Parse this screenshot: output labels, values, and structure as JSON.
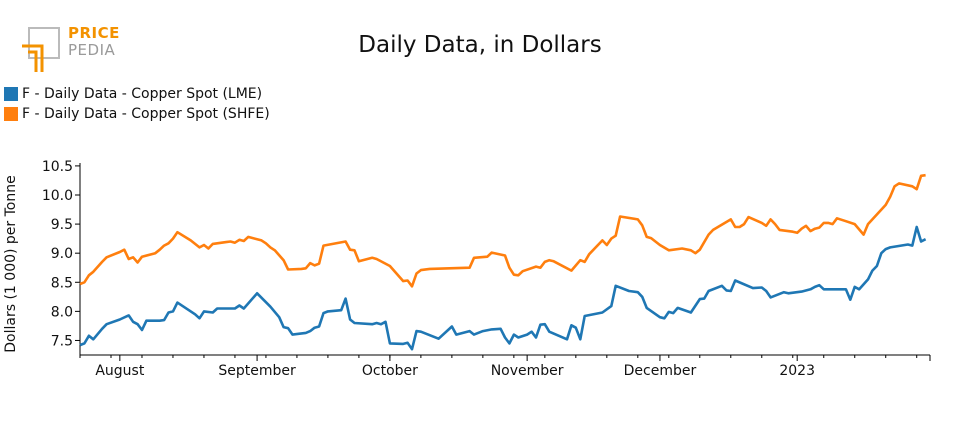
{
  "logo": {
    "line1": "PRICE",
    "line2": "PEDIA",
    "brand_color": "#f39200"
  },
  "chart_data": {
    "type": "line",
    "title": "Daily Data, in Dollars",
    "ylabel": "Dollars (1 000) per Tonne",
    "xlabel": "",
    "ylim": [
      7.25,
      10.55
    ],
    "yticks": [
      7.5,
      8.0,
      8.5,
      9.0,
      9.5,
      10.0,
      10.5
    ],
    "ytick_labels": [
      "7.5",
      "8.0",
      "8.5",
      "9.0",
      "9.5",
      "10.0",
      "10.5"
    ],
    "xlim": [
      "2022-07-23",
      "2023-01-31"
    ],
    "xticks": [
      "2022-08-01",
      "2022-09-01",
      "2022-10-01",
      "2022-11-01",
      "2022-12-01",
      "2023-01-01"
    ],
    "xtick_labels": [
      "August",
      "September",
      "October",
      "November",
      "December",
      "2023"
    ],
    "legend_position": "top-left",
    "series": [
      {
        "name": "F - Daily Data - Copper Spot (LME)",
        "color": "#1f77b4",
        "points": [
          [
            "2022-07-23",
            7.42
          ],
          [
            "2022-07-24",
            7.45
          ],
          [
            "2022-07-25",
            7.58
          ],
          [
            "2022-07-26",
            7.52
          ],
          [
            "2022-07-28",
            7.7
          ],
          [
            "2022-07-29",
            7.78
          ],
          [
            "2022-08-01",
            7.86
          ],
          [
            "2022-08-03",
            7.93
          ],
          [
            "2022-08-04",
            7.82
          ],
          [
            "2022-08-05",
            7.78
          ],
          [
            "2022-08-06",
            7.68
          ],
          [
            "2022-08-07",
            7.84
          ],
          [
            "2022-08-10",
            7.84
          ],
          [
            "2022-08-11",
            7.85
          ],
          [
            "2022-08-12",
            7.98
          ],
          [
            "2022-08-13",
            8.0
          ],
          [
            "2022-08-14",
            8.15
          ],
          [
            "2022-08-18",
            7.95
          ],
          [
            "2022-08-19",
            7.88
          ],
          [
            "2022-08-20",
            8.0
          ],
          [
            "2022-08-22",
            7.98
          ],
          [
            "2022-08-23",
            8.05
          ],
          [
            "2022-08-24",
            8.05
          ],
          [
            "2022-08-27",
            8.05
          ],
          [
            "2022-08-28",
            8.1
          ],
          [
            "2022-08-29",
            8.05
          ],
          [
            "2022-09-01",
            8.31
          ],
          [
            "2022-09-04",
            8.08
          ],
          [
            "2022-09-06",
            7.9
          ],
          [
            "2022-09-07",
            7.73
          ],
          [
            "2022-09-08",
            7.71
          ],
          [
            "2022-09-09",
            7.6
          ],
          [
            "2022-09-12",
            7.63
          ],
          [
            "2022-09-13",
            7.66
          ],
          [
            "2022-09-14",
            7.72
          ],
          [
            "2022-09-15",
            7.74
          ],
          [
            "2022-09-16",
            7.97
          ],
          [
            "2022-09-17",
            8.0
          ],
          [
            "2022-09-20",
            8.02
          ],
          [
            "2022-09-21",
            8.22
          ],
          [
            "2022-09-22",
            7.86
          ],
          [
            "2022-09-23",
            7.8
          ],
          [
            "2022-09-27",
            7.78
          ],
          [
            "2022-09-28",
            7.8
          ],
          [
            "2022-09-29",
            7.78
          ],
          [
            "2022-09-30",
            7.82
          ],
          [
            "2022-10-01",
            7.45
          ],
          [
            "2022-10-04",
            7.44
          ],
          [
            "2022-10-05",
            7.46
          ],
          [
            "2022-10-06",
            7.35
          ],
          [
            "2022-10-07",
            7.66
          ],
          [
            "2022-10-08",
            7.65
          ],
          [
            "2022-10-12",
            7.53
          ],
          [
            "2022-10-15",
            7.74
          ],
          [
            "2022-10-16",
            7.6
          ],
          [
            "2022-10-19",
            7.66
          ],
          [
            "2022-10-20",
            7.6
          ],
          [
            "2022-10-22",
            7.66
          ],
          [
            "2022-10-24",
            7.69
          ],
          [
            "2022-10-26",
            7.7
          ],
          [
            "2022-10-27",
            7.55
          ],
          [
            "2022-10-28",
            7.45
          ],
          [
            "2022-10-29",
            7.6
          ],
          [
            "2022-10-30",
            7.55
          ],
          [
            "2022-11-01",
            7.6
          ],
          [
            "2022-11-02",
            7.65
          ],
          [
            "2022-11-03",
            7.55
          ],
          [
            "2022-11-04",
            7.77
          ],
          [
            "2022-11-05",
            7.78
          ],
          [
            "2022-11-06",
            7.65
          ],
          [
            "2022-11-10",
            7.52
          ],
          [
            "2022-11-11",
            7.76
          ],
          [
            "2022-11-12",
            7.72
          ],
          [
            "2022-11-13",
            7.52
          ],
          [
            "2022-11-14",
            7.92
          ],
          [
            "2022-11-18",
            7.98
          ],
          [
            "2022-11-20",
            8.09
          ],
          [
            "2022-11-21",
            8.44
          ],
          [
            "2022-11-24",
            8.35
          ],
          [
            "2022-11-26",
            8.33
          ],
          [
            "2022-11-27",
            8.25
          ],
          [
            "2022-11-28",
            8.06
          ],
          [
            "2022-12-01",
            7.9
          ],
          [
            "2022-12-02",
            7.88
          ],
          [
            "2022-12-03",
            7.99
          ],
          [
            "2022-12-04",
            7.97
          ],
          [
            "2022-12-05",
            8.06
          ],
          [
            "2022-12-08",
            7.98
          ],
          [
            "2022-12-10",
            8.21
          ],
          [
            "2022-12-11",
            8.22
          ],
          [
            "2022-12-12",
            8.35
          ],
          [
            "2022-12-15",
            8.44
          ],
          [
            "2022-12-16",
            8.36
          ],
          [
            "2022-12-17",
            8.35
          ],
          [
            "2022-12-18",
            8.53
          ],
          [
            "2022-12-22",
            8.4
          ],
          [
            "2022-12-24",
            8.41
          ],
          [
            "2022-12-25",
            8.35
          ],
          [
            "2022-12-26",
            8.24
          ],
          [
            "2022-12-28",
            8.3
          ],
          [
            "2022-12-29",
            8.33
          ],
          [
            "2022-12-30",
            8.31
          ],
          [
            "2023-01-02",
            8.34
          ],
          [
            "2023-01-04",
            8.38
          ],
          [
            "2023-01-05",
            8.42
          ],
          [
            "2023-01-06",
            8.45
          ],
          [
            "2023-01-07",
            8.38
          ],
          [
            "2023-01-12",
            8.38
          ],
          [
            "2023-01-13",
            8.2
          ],
          [
            "2023-01-14",
            8.42
          ],
          [
            "2023-01-15",
            8.38
          ],
          [
            "2023-01-17",
            8.55
          ],
          [
            "2023-01-18",
            8.7
          ],
          [
            "2023-01-19",
            8.78
          ],
          [
            "2023-01-20",
            9.0
          ],
          [
            "2023-01-21",
            9.07
          ],
          [
            "2023-01-22",
            9.1
          ],
          [
            "2023-01-26",
            9.15
          ],
          [
            "2023-01-27",
            9.13
          ],
          [
            "2023-01-28",
            9.45
          ],
          [
            "2023-01-29",
            9.2
          ],
          [
            "2023-01-30",
            9.24
          ]
        ]
      },
      {
        "name": "F - Daily Data - Copper Spot (SHFE)",
        "color": "#ff7f0e",
        "points": [
          [
            "2022-07-23",
            8.47
          ],
          [
            "2022-07-24",
            8.5
          ],
          [
            "2022-07-25",
            8.62
          ],
          [
            "2022-07-26",
            8.68
          ],
          [
            "2022-07-28",
            8.85
          ],
          [
            "2022-07-29",
            8.93
          ],
          [
            "2022-08-01",
            9.02
          ],
          [
            "2022-08-02",
            9.06
          ],
          [
            "2022-08-03",
            8.9
          ],
          [
            "2022-08-04",
            8.93
          ],
          [
            "2022-08-05",
            8.84
          ],
          [
            "2022-08-06",
            8.94
          ],
          [
            "2022-08-09",
            9.0
          ],
          [
            "2022-08-10",
            9.06
          ],
          [
            "2022-08-11",
            9.13
          ],
          [
            "2022-08-12",
            9.17
          ],
          [
            "2022-08-13",
            9.25
          ],
          [
            "2022-08-14",
            9.36
          ],
          [
            "2022-08-17",
            9.22
          ],
          [
            "2022-08-19",
            9.1
          ],
          [
            "2022-08-20",
            9.14
          ],
          [
            "2022-08-21",
            9.08
          ],
          [
            "2022-08-22",
            9.16
          ],
          [
            "2022-08-25",
            9.19
          ],
          [
            "2022-08-26",
            9.2
          ],
          [
            "2022-08-27",
            9.18
          ],
          [
            "2022-08-28",
            9.23
          ],
          [
            "2022-08-29",
            9.21
          ],
          [
            "2022-08-30",
            9.28
          ],
          [
            "2022-09-02",
            9.22
          ],
          [
            "2022-09-03",
            9.17
          ],
          [
            "2022-09-04",
            9.1
          ],
          [
            "2022-09-05",
            9.05
          ],
          [
            "2022-09-07",
            8.88
          ],
          [
            "2022-09-08",
            8.72
          ],
          [
            "2022-09-11",
            8.73
          ],
          [
            "2022-09-12",
            8.74
          ],
          [
            "2022-09-13",
            8.83
          ],
          [
            "2022-09-14",
            8.79
          ],
          [
            "2022-09-15",
            8.82
          ],
          [
            "2022-09-16",
            9.13
          ],
          [
            "2022-09-21",
            9.2
          ],
          [
            "2022-09-22",
            9.06
          ],
          [
            "2022-09-23",
            9.05
          ],
          [
            "2022-09-24",
            8.86
          ],
          [
            "2022-09-27",
            8.92
          ],
          [
            "2022-09-28",
            8.9
          ],
          [
            "2022-10-01",
            8.78
          ],
          [
            "2022-10-04",
            8.52
          ],
          [
            "2022-10-05",
            8.53
          ],
          [
            "2022-10-06",
            8.43
          ],
          [
            "2022-10-07",
            8.65
          ],
          [
            "2022-10-08",
            8.71
          ],
          [
            "2022-10-10",
            8.73
          ],
          [
            "2022-10-19",
            8.75
          ],
          [
            "2022-10-20",
            8.92
          ],
          [
            "2022-10-23",
            8.94
          ],
          [
            "2022-10-24",
            9.01
          ],
          [
            "2022-10-27",
            8.96
          ],
          [
            "2022-10-28",
            8.75
          ],
          [
            "2022-10-29",
            8.63
          ],
          [
            "2022-10-30",
            8.62
          ],
          [
            "2022-10-31",
            8.69
          ],
          [
            "2022-11-03",
            8.77
          ],
          [
            "2022-11-04",
            8.75
          ],
          [
            "2022-11-05",
            8.85
          ],
          [
            "2022-11-06",
            8.88
          ],
          [
            "2022-11-07",
            8.86
          ],
          [
            "2022-11-11",
            8.7
          ],
          [
            "2022-11-13",
            8.88
          ],
          [
            "2022-11-14",
            8.85
          ],
          [
            "2022-11-15",
            8.98
          ],
          [
            "2022-11-18",
            9.22
          ],
          [
            "2022-11-19",
            9.14
          ],
          [
            "2022-11-20",
            9.25
          ],
          [
            "2022-11-21",
            9.3
          ],
          [
            "2022-11-22",
            9.63
          ],
          [
            "2022-11-26",
            9.58
          ],
          [
            "2022-11-27",
            9.48
          ],
          [
            "2022-11-28",
            9.28
          ],
          [
            "2022-11-29",
            9.26
          ],
          [
            "2022-12-01",
            9.14
          ],
          [
            "2022-12-03",
            9.05
          ],
          [
            "2022-12-06",
            9.08
          ],
          [
            "2022-12-08",
            9.05
          ],
          [
            "2022-12-09",
            9.0
          ],
          [
            "2022-12-10",
            9.06
          ],
          [
            "2022-12-12",
            9.32
          ],
          [
            "2022-12-13",
            9.4
          ],
          [
            "2022-12-17",
            9.58
          ],
          [
            "2022-12-18",
            9.45
          ],
          [
            "2022-12-19",
            9.45
          ],
          [
            "2022-12-20",
            9.5
          ],
          [
            "2022-12-21",
            9.62
          ],
          [
            "2022-12-24",
            9.52
          ],
          [
            "2022-12-25",
            9.47
          ],
          [
            "2022-12-26",
            9.58
          ],
          [
            "2022-12-27",
            9.5
          ],
          [
            "2022-12-28",
            9.4
          ],
          [
            "2022-12-31",
            9.37
          ],
          [
            "2023-01-01",
            9.35
          ],
          [
            "2023-01-02",
            9.42
          ],
          [
            "2023-01-03",
            9.47
          ],
          [
            "2023-01-04",
            9.38
          ],
          [
            "2023-01-05",
            9.42
          ],
          [
            "2023-01-06",
            9.44
          ],
          [
            "2023-01-07",
            9.52
          ],
          [
            "2023-01-08",
            9.52
          ],
          [
            "2023-01-09",
            9.5
          ],
          [
            "2023-01-10",
            9.6
          ],
          [
            "2023-01-12",
            9.55
          ],
          [
            "2023-01-14",
            9.5
          ],
          [
            "2023-01-16",
            9.32
          ],
          [
            "2023-01-17",
            9.5
          ],
          [
            "2023-01-21",
            9.83
          ],
          [
            "2023-01-22",
            9.97
          ],
          [
            "2023-01-23",
            10.15
          ],
          [
            "2023-01-24",
            10.2
          ],
          [
            "2023-01-27",
            10.15
          ],
          [
            "2023-01-28",
            10.1
          ],
          [
            "2023-01-29",
            10.33
          ],
          [
            "2023-01-30",
            10.34
          ]
        ]
      }
    ]
  }
}
